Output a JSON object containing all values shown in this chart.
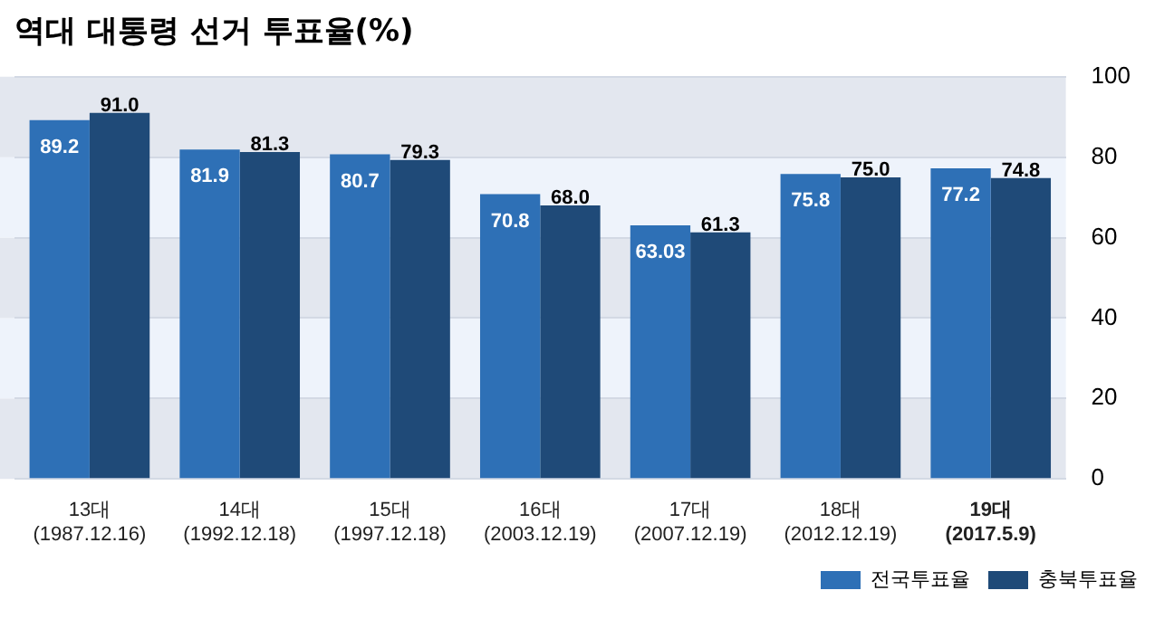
{
  "chart_data": {
    "type": "bar",
    "title": "역대 대통령 선거 투표율(%)",
    "categories": [
      "13대\n(1987.12.16)",
      "14대\n(1992.12.18)",
      "15대\n(1997.12.18)",
      "16대\n(2003.12.19)",
      "17대\n(2007.12.19)",
      "18대\n(2012.12.19)",
      "19대\n(2017.5.9)"
    ],
    "series": [
      {
        "name": "전국투표율",
        "color": "#2e70b6",
        "values": [
          89.2,
          81.9,
          80.7,
          70.8,
          63.03,
          75.8,
          77.2
        ]
      },
      {
        "name": "충북투표율",
        "color": "#1f4a78",
        "values": [
          91.0,
          81.3,
          79.3,
          68.0,
          61.3,
          75.0,
          74.8
        ]
      }
    ],
    "value_labels": [
      [
        "89.2",
        "81.9",
        "80.7",
        "70.8",
        "63.03",
        "75.8",
        "77.2"
      ],
      [
        "91.0",
        "81.3",
        "79.3",
        "68.0",
        "61.3",
        "75.0",
        "74.8"
      ]
    ],
    "ylim": [
      0,
      100
    ],
    "yticks": [
      0,
      20,
      40,
      60,
      80,
      100
    ],
    "grid": true,
    "legend": "bottom right"
  }
}
